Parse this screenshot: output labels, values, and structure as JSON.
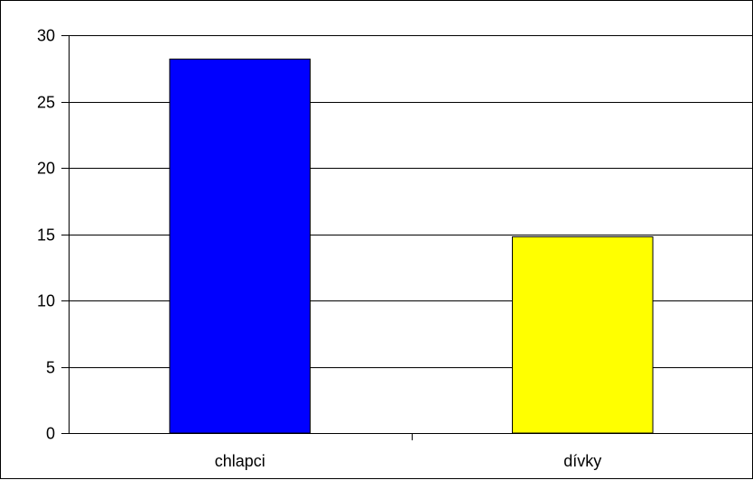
{
  "chart_data": {
    "type": "bar",
    "categories": [
      "chlapci",
      "dívky"
    ],
    "values": [
      28.2,
      14.8
    ],
    "colors": [
      "#0000FF",
      "#FFFF00"
    ],
    "title": "",
    "xlabel": "",
    "ylabel": "",
    "ylim": [
      0,
      30
    ],
    "yticks": [
      0,
      5,
      10,
      15,
      20,
      25,
      30
    ],
    "grid": true,
    "legend": "none"
  }
}
